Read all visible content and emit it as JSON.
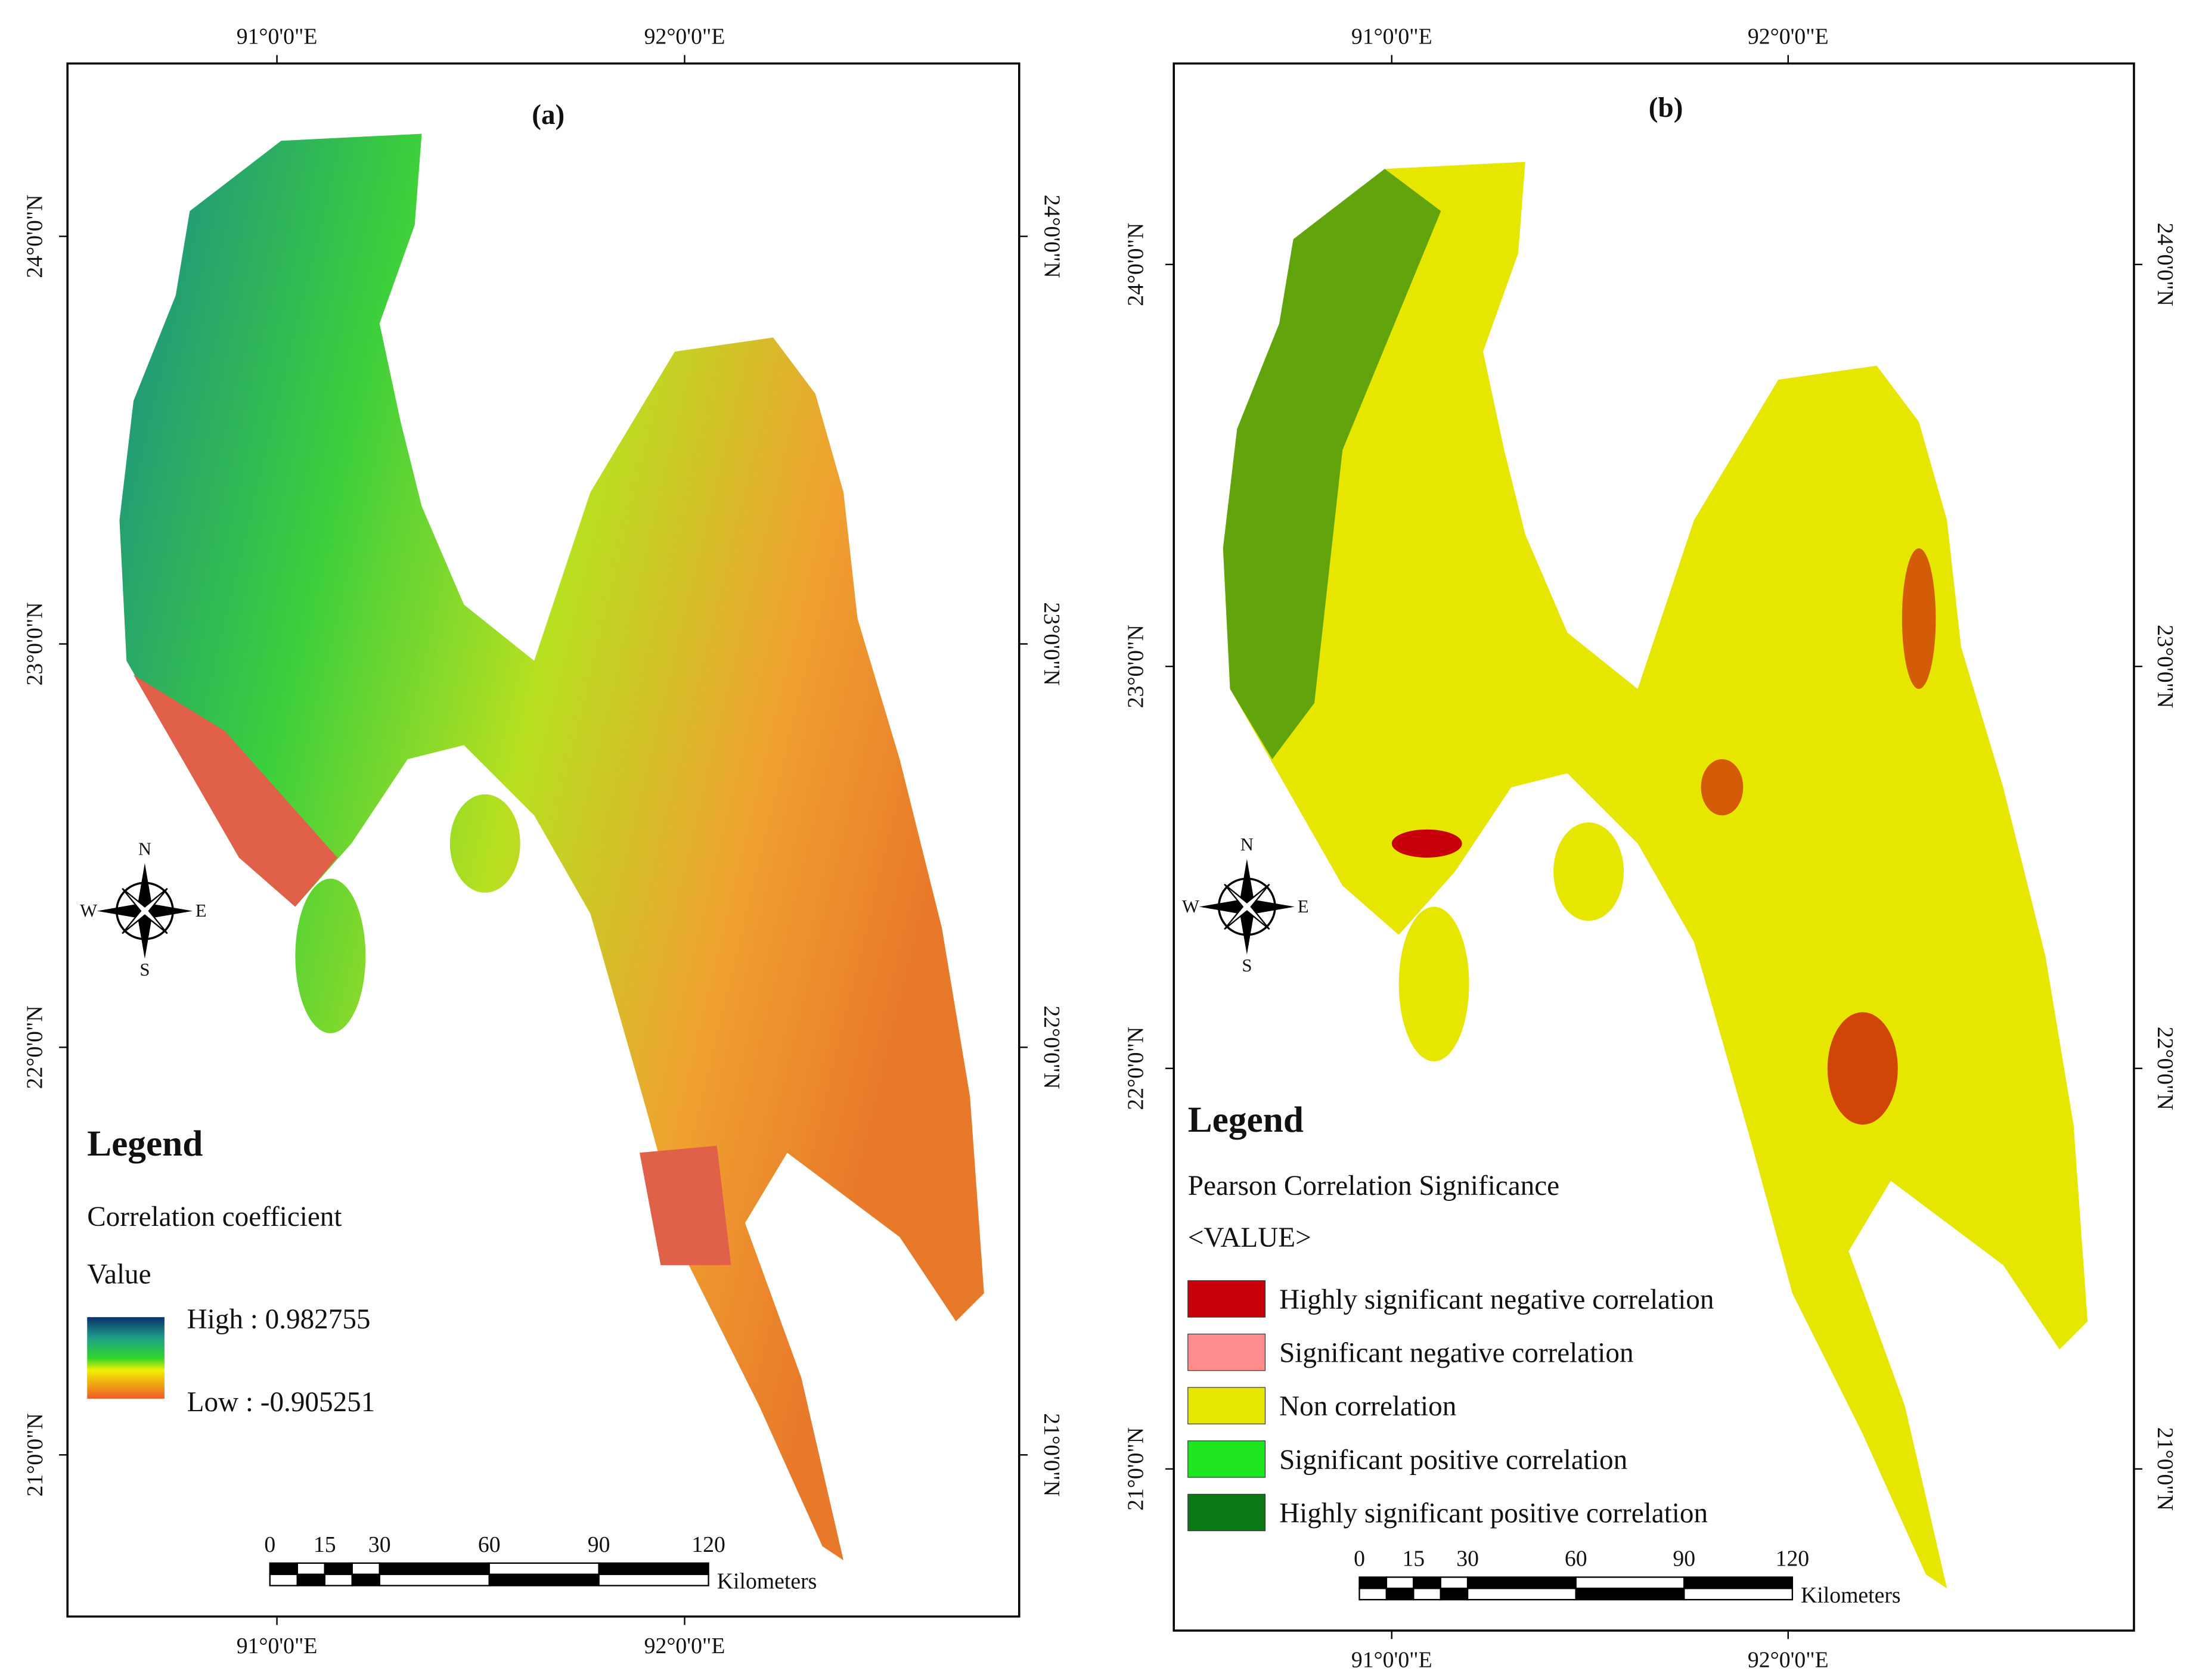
{
  "panels": [
    {
      "label": "(a)",
      "x_ticks": [
        "91°0'0\"E",
        "92°0'0\"E"
      ],
      "y_ticks": [
        "24°0'0\"N",
        "23°0'0\"N",
        "22°0'0\"N",
        "21°0'0\"N"
      ],
      "compass": [
        "N",
        "E",
        "S",
        "W"
      ],
      "legend": {
        "title": "Legend",
        "subtitle": "Correlation coefficient",
        "value_label": "Value",
        "high": "High : 0.982755",
        "low": "Low : -0.905251"
      },
      "scale_bar": {
        "labels": [
          "0",
          "15",
          "30",
          "60",
          "90",
          "120"
        ],
        "unit": "Kilometers"
      }
    },
    {
      "label": "(b)",
      "x_ticks": [
        "91°0'0\"E",
        "92°0'0\"E"
      ],
      "y_ticks": [
        "24°0'0\"N",
        "23°0'0\"N",
        "22°0'0\"N",
        "21°0'0\"N"
      ],
      "compass": [
        "N",
        "E",
        "S",
        "W"
      ],
      "legend": {
        "title": "Legend",
        "subtitle": "Pearson Correlation Significance",
        "value_label": "<VALUE>",
        "classes": [
          {
            "label": "Highly significant negative correlation",
            "color": "#c8000a"
          },
          {
            "label": "Significant negative correlation",
            "color": "#ff8c8c"
          },
          {
            "label": "Non correlation",
            "color": "#e6e600"
          },
          {
            "label": "Significant positive correlation",
            "color": "#1ee61e"
          },
          {
            "label": "Highly significant positive correlation",
            "color": "#0a7814"
          }
        ]
      },
      "scale_bar": {
        "labels": [
          "0",
          "15",
          "30",
          "60",
          "90",
          "120"
        ],
        "unit": "Kilometers"
      }
    }
  ]
}
